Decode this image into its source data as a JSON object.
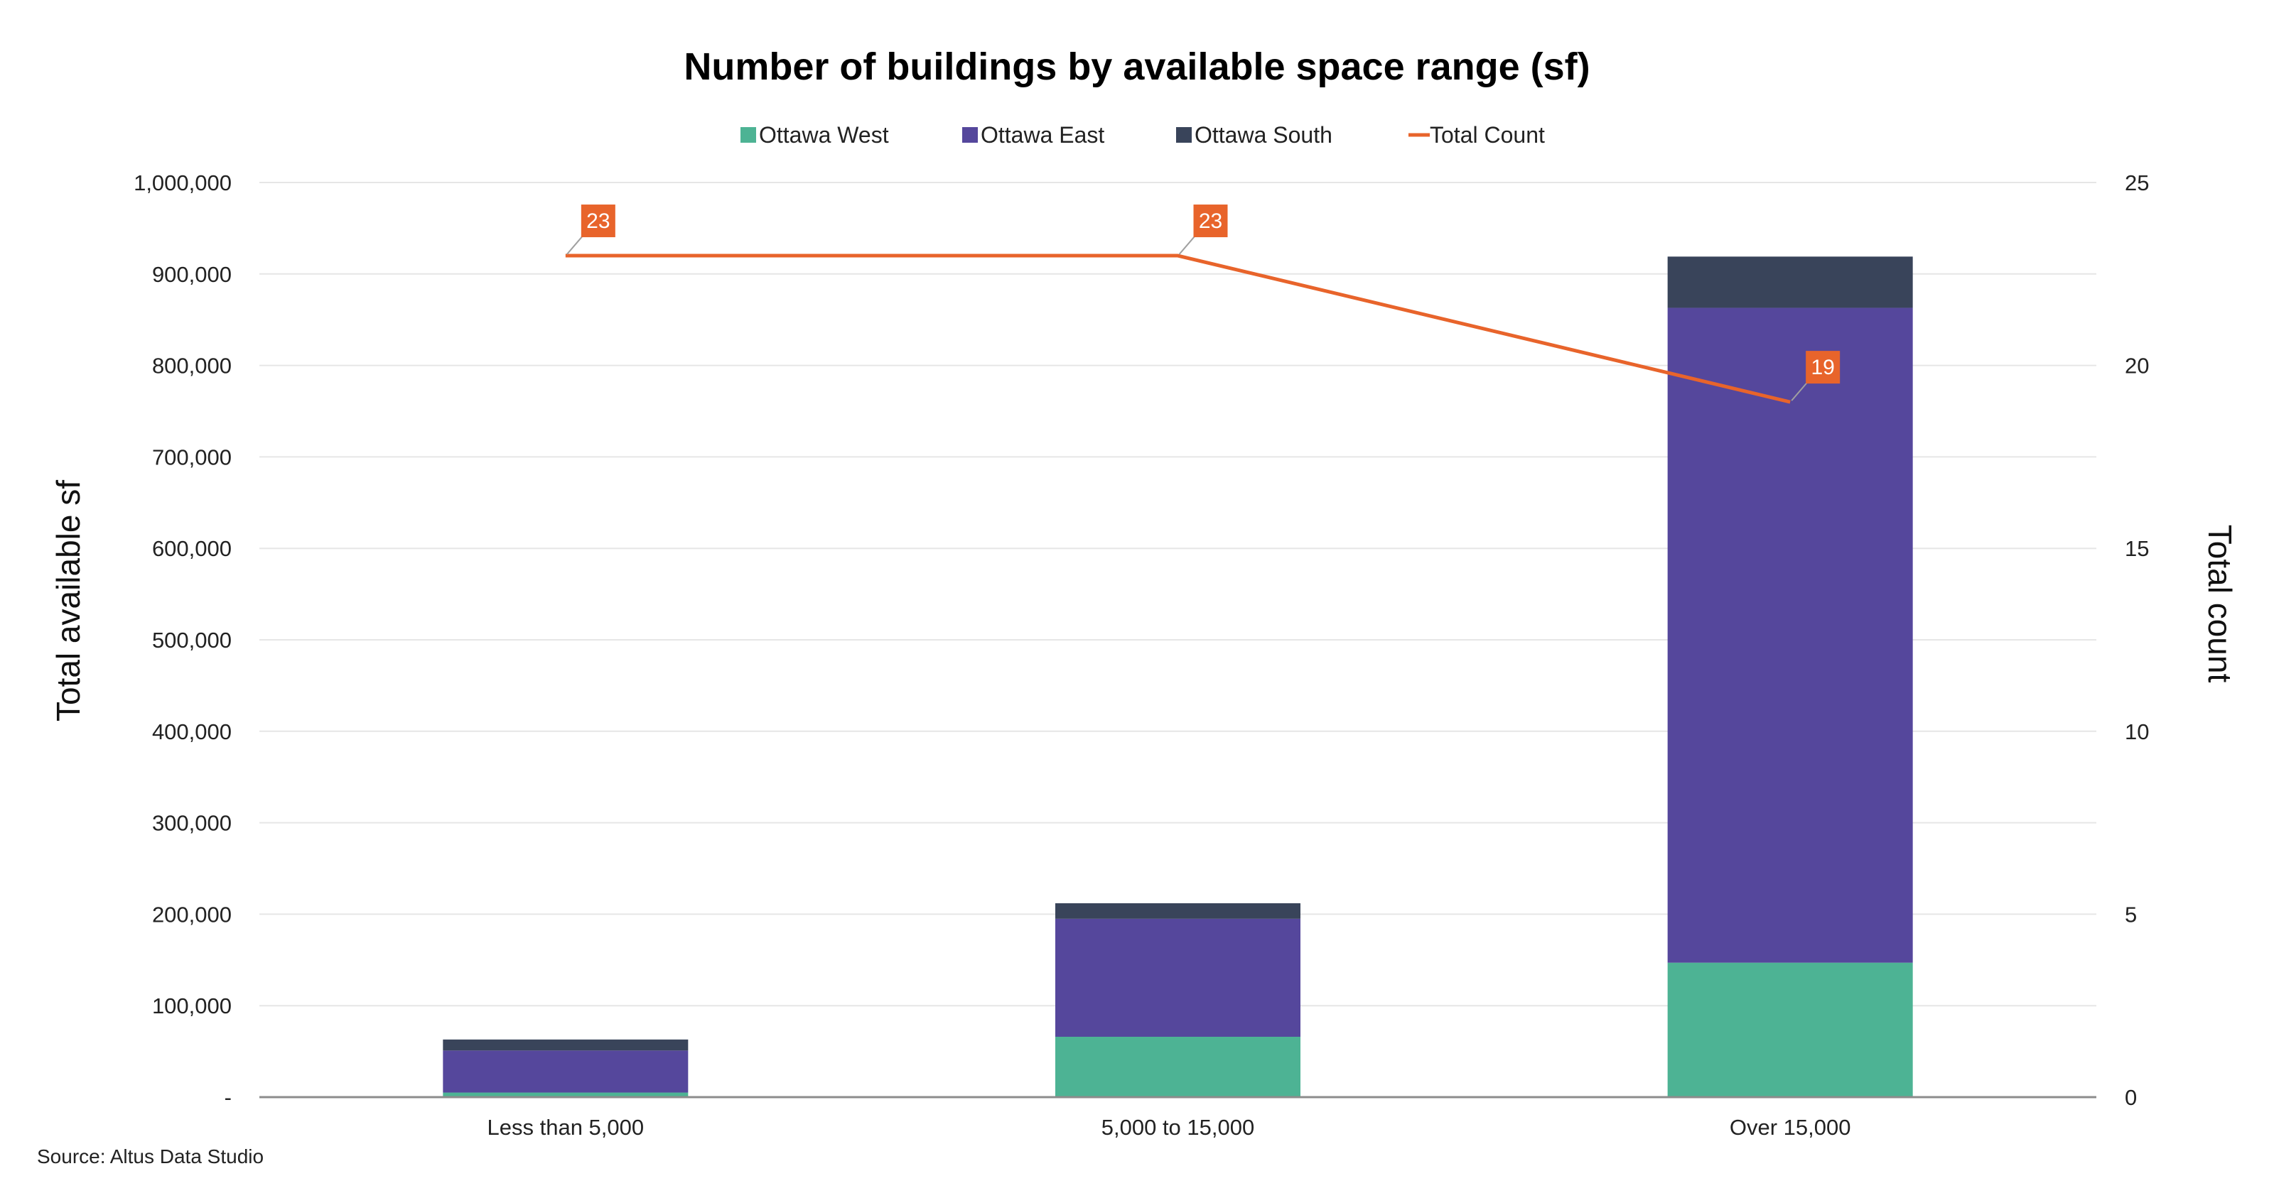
{
  "chart_data": {
    "type": "bar",
    "stacked": true,
    "title": "Number of buildings by available space range (sf)",
    "categories": [
      "Less than 5,000",
      "5,000 to 15,000",
      "Over 15,000"
    ],
    "series": [
      {
        "name": "Ottawa West",
        "type": "bar",
        "color": "#4db394",
        "values": [
          5000,
          66000,
          147000
        ]
      },
      {
        "name": "Ottawa East",
        "type": "bar",
        "color": "#55479c",
        "values": [
          46000,
          129000,
          716000
        ]
      },
      {
        "name": "Ottawa South",
        "type": "bar",
        "color": "#39445a",
        "values": [
          12000,
          17000,
          56000
        ]
      },
      {
        "name": "Total Count",
        "type": "line",
        "axis": "right",
        "color": "#e8642b",
        "values": [
          23,
          23,
          19
        ]
      }
    ],
    "data_labels": [
      "23",
      "23",
      "19"
    ],
    "ylabel": "Total available sf",
    "y2label": "Total count",
    "ylim": [
      0,
      1000000
    ],
    "y2lim": [
      0,
      25
    ],
    "y_ticks": [
      "-",
      "100,000",
      "200,000",
      "300,000",
      "400,000",
      "500,000",
      "600,000",
      "700,000",
      "800,000",
      "900,000",
      "1,000,000"
    ],
    "y2_ticks": [
      "0",
      "5",
      "10",
      "15",
      "20",
      "25"
    ],
    "grid": true,
    "legend_position": "top"
  },
  "source_text": "Source:  Altus Data Studio"
}
